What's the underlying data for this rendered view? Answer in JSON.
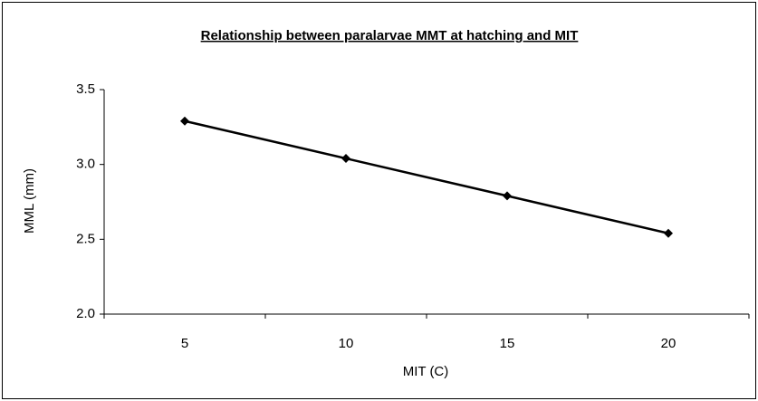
{
  "chart_data": {
    "type": "line",
    "title": "Relationship between paralarvae MMT at hatching and MIT",
    "x_label": "MIT (C)",
    "y_label": "MML (mm)",
    "categories": [
      "5",
      "10",
      "15",
      "20"
    ],
    "values": [
      3.29,
      3.04,
      2.79,
      2.54
    ],
    "color": "#000000",
    "ylim": [
      2.0,
      3.5
    ],
    "yticks": [
      {
        "value": 2.0,
        "label": "2.0"
      },
      2.5,
      {
        "value": 3.0,
        "label": "3.0"
      },
      3.5
    ],
    "grid": false
  }
}
